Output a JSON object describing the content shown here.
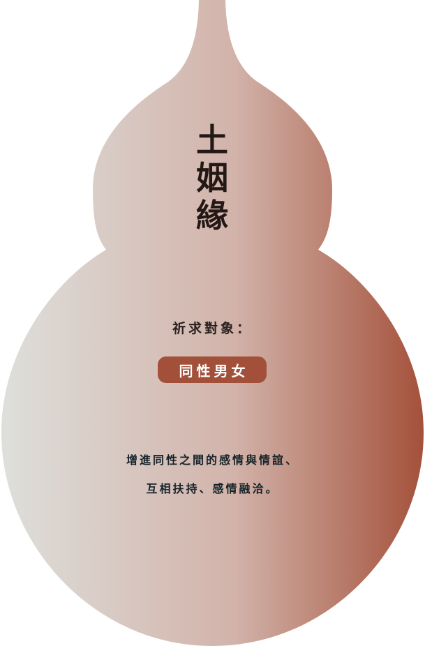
{
  "title_chars": [
    "土",
    "姻",
    "緣"
  ],
  "subtitle": "祈求對象：",
  "badge": "同性男女",
  "description": [
    "增進同性之間的感情與情誼、",
    "互相扶持、感情融洽。"
  ],
  "colors": {
    "gradient_left": "#dedfdb",
    "gradient_mid": "#d2b3aa",
    "gradient_right": "#a4513a",
    "badge_bg": "#a2503a",
    "title_text": "#231815",
    "body_text": "#16232a"
  }
}
